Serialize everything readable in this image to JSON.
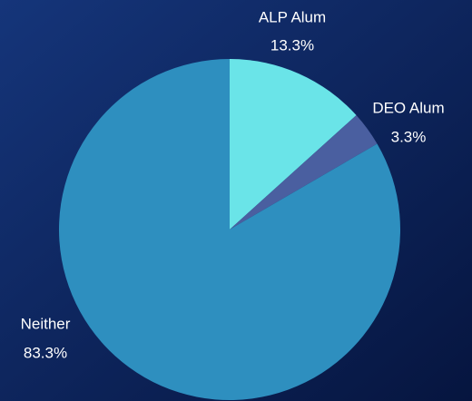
{
  "chart_data": {
    "type": "pie",
    "categories": [
      "ALP Alum",
      "DEO Alum",
      "Neither"
    ],
    "values": [
      13.3,
      3.3,
      83.3
    ],
    "value_labels": [
      "13.3%",
      "3.3%",
      "83.3%"
    ],
    "colors": [
      "#6ae4e8",
      "#4a5fa0",
      "#2e8fbf"
    ]
  }
}
